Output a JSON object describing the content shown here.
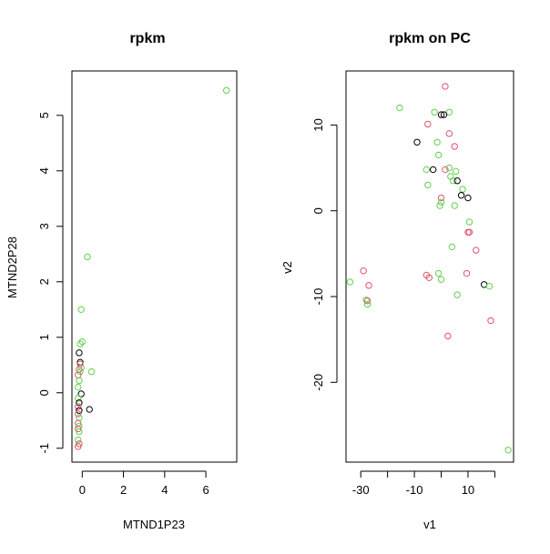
{
  "chart_data": [
    {
      "type": "scatter",
      "title": "rpkm",
      "xlabel": "MTND1P23",
      "ylabel": "MTND2P28",
      "xlim": [
        -0.5,
        7.5
      ],
      "ylim": [
        -1.25,
        5.8
      ],
      "xticks": [
        0,
        2,
        4,
        6
      ],
      "yticks": [
        -1,
        0,
        1,
        2,
        3,
        4,
        5
      ],
      "grid": false,
      "legend": "none",
      "colors": {
        "black": "#000000",
        "red": "#DF536B",
        "green": "#61D04F"
      },
      "points": [
        {
          "x": 7.0,
          "y": 5.45,
          "c": "green"
        },
        {
          "x": 0.25,
          "y": 2.45,
          "c": "green"
        },
        {
          "x": -0.05,
          "y": 1.5,
          "c": "green"
        },
        {
          "x": 0.0,
          "y": 0.92,
          "c": "green"
        },
        {
          "x": -0.1,
          "y": 0.88,
          "c": "green"
        },
        {
          "x": 0.45,
          "y": 0.38,
          "c": "green"
        },
        {
          "x": -0.15,
          "y": 0.72,
          "c": "black"
        },
        {
          "x": -0.1,
          "y": 0.55,
          "c": "black"
        },
        {
          "x": -0.1,
          "y": 0.52,
          "c": "red"
        },
        {
          "x": -0.05,
          "y": 0.45,
          "c": "green"
        },
        {
          "x": -0.15,
          "y": 0.42,
          "c": "red"
        },
        {
          "x": -0.1,
          "y": 0.38,
          "c": "green"
        },
        {
          "x": -0.2,
          "y": 0.32,
          "c": "red"
        },
        {
          "x": -0.15,
          "y": 0.22,
          "c": "green"
        },
        {
          "x": -0.2,
          "y": 0.1,
          "c": "green"
        },
        {
          "x": -0.05,
          "y": -0.02,
          "c": "black"
        },
        {
          "x": -0.2,
          "y": -0.1,
          "c": "green"
        },
        {
          "x": -0.15,
          "y": -0.18,
          "c": "black"
        },
        {
          "x": -0.2,
          "y": -0.25,
          "c": "red"
        },
        {
          "x": 0.35,
          "y": -0.3,
          "c": "black"
        },
        {
          "x": -0.15,
          "y": -0.32,
          "c": "black"
        },
        {
          "x": -0.2,
          "y": -0.38,
          "c": "red"
        },
        {
          "x": -0.15,
          "y": -0.45,
          "c": "green"
        },
        {
          "x": -0.2,
          "y": -0.55,
          "c": "red"
        },
        {
          "x": -0.15,
          "y": -0.6,
          "c": "green"
        },
        {
          "x": -0.2,
          "y": -0.65,
          "c": "red"
        },
        {
          "x": -0.15,
          "y": -0.7,
          "c": "green"
        },
        {
          "x": -0.2,
          "y": -0.85,
          "c": "green"
        },
        {
          "x": -0.15,
          "y": -0.92,
          "c": "red"
        },
        {
          "x": -0.2,
          "y": -0.97,
          "c": "red"
        }
      ]
    },
    {
      "type": "scatter",
      "title": "rpkm on PC",
      "xlabel": "v1",
      "ylabel": "v2",
      "xlim": [
        -35.5,
        27
      ],
      "ylim": [
        -29.3,
        16.3
      ],
      "xticks": [
        -30,
        -20,
        -10,
        0,
        10,
        20
      ],
      "xtick_labels": [
        "-30",
        "",
        "-10",
        "",
        "10",
        ""
      ],
      "yticks": [
        -20,
        -10,
        0,
        10
      ],
      "grid": false,
      "legend": "none",
      "colors": {
        "black": "#000000",
        "red": "#DF536B",
        "green": "#61D04F"
      },
      "points": [
        {
          "x": 1.5,
          "y": 14.5,
          "c": "red"
        },
        {
          "x": -15.5,
          "y": 12.0,
          "c": "green"
        },
        {
          "x": -2.5,
          "y": 11.5,
          "c": "green"
        },
        {
          "x": 3.0,
          "y": 11.5,
          "c": "green"
        },
        {
          "x": 0.0,
          "y": 11.2,
          "c": "black"
        },
        {
          "x": 1.0,
          "y": 11.2,
          "c": "black"
        },
        {
          "x": -5.0,
          "y": 10.1,
          "c": "red"
        },
        {
          "x": 3.0,
          "y": 9.0,
          "c": "red"
        },
        {
          "x": -9.0,
          "y": 8.0,
          "c": "black"
        },
        {
          "x": -1.5,
          "y": 8.0,
          "c": "green"
        },
        {
          "x": 5.0,
          "y": 7.5,
          "c": "red"
        },
        {
          "x": -1.0,
          "y": 6.5,
          "c": "green"
        },
        {
          "x": -5.5,
          "y": 4.8,
          "c": "green"
        },
        {
          "x": -3.0,
          "y": 4.8,
          "c": "black"
        },
        {
          "x": 1.5,
          "y": 4.8,
          "c": "red"
        },
        {
          "x": 3.0,
          "y": 5.0,
          "c": "green"
        },
        {
          "x": 5.5,
          "y": 4.6,
          "c": "green"
        },
        {
          "x": 3.5,
          "y": 4.0,
          "c": "green"
        },
        {
          "x": 4.5,
          "y": 3.5,
          "c": "green"
        },
        {
          "x": 6.0,
          "y": 3.5,
          "c": "black"
        },
        {
          "x": -5.0,
          "y": 3.0,
          "c": "green"
        },
        {
          "x": 8.0,
          "y": 2.5,
          "c": "green"
        },
        {
          "x": 7.5,
          "y": 1.8,
          "c": "black"
        },
        {
          "x": 10.0,
          "y": 1.5,
          "c": "black"
        },
        {
          "x": 0.0,
          "y": 1.5,
          "c": "red"
        },
        {
          "x": 0.0,
          "y": 1.0,
          "c": "green"
        },
        {
          "x": -0.5,
          "y": 0.6,
          "c": "green"
        },
        {
          "x": 5.0,
          "y": 0.6,
          "c": "green"
        },
        {
          "x": 10.5,
          "y": -1.3,
          "c": "green"
        },
        {
          "x": 10.0,
          "y": -2.5,
          "c": "red"
        },
        {
          "x": 10.5,
          "y": -2.5,
          "c": "red"
        },
        {
          "x": 4.0,
          "y": -4.2,
          "c": "green"
        },
        {
          "x": 13.0,
          "y": -4.6,
          "c": "red"
        },
        {
          "x": -5.5,
          "y": -7.5,
          "c": "red"
        },
        {
          "x": -4.5,
          "y": -7.8,
          "c": "red"
        },
        {
          "x": -1.0,
          "y": -7.3,
          "c": "green"
        },
        {
          "x": 0.0,
          "y": -8.0,
          "c": "green"
        },
        {
          "x": 9.5,
          "y": -7.3,
          "c": "red"
        },
        {
          "x": -29.0,
          "y": -7.0,
          "c": "red"
        },
        {
          "x": -34.0,
          "y": -8.3,
          "c": "green"
        },
        {
          "x": -27.0,
          "y": -8.7,
          "c": "red"
        },
        {
          "x": 16.0,
          "y": -8.6,
          "c": "black"
        },
        {
          "x": 18.0,
          "y": -8.8,
          "c": "green"
        },
        {
          "x": 6.0,
          "y": -9.8,
          "c": "green"
        },
        {
          "x": -28.0,
          "y": -10.4,
          "c": "green"
        },
        {
          "x": -27.5,
          "y": -10.5,
          "c": "red"
        },
        {
          "x": -27.5,
          "y": -10.9,
          "c": "green"
        },
        {
          "x": 18.5,
          "y": -12.8,
          "c": "red"
        },
        {
          "x": 2.5,
          "y": -14.6,
          "c": "red"
        },
        {
          "x": 25.0,
          "y": -27.9,
          "c": "green"
        }
      ]
    }
  ]
}
